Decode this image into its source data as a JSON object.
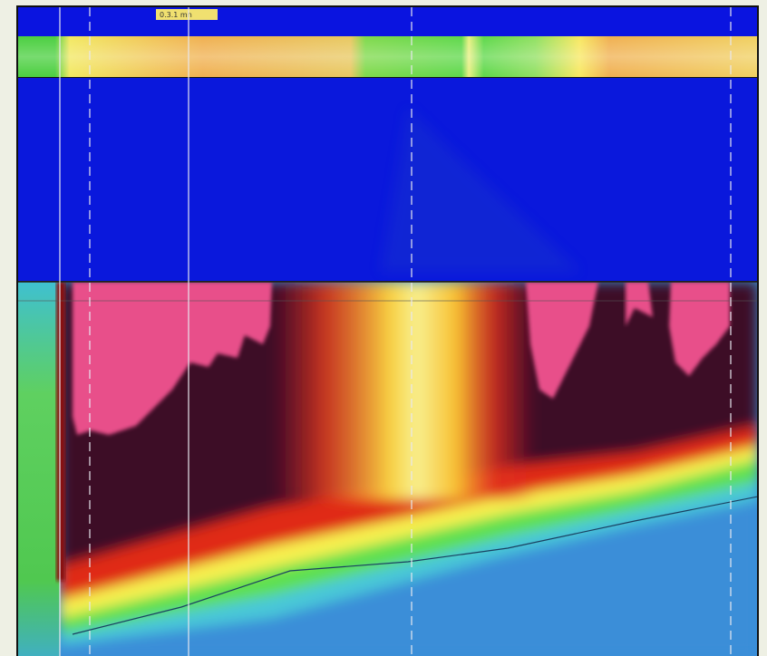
{
  "timestamp_label": "0.3.1 mn"
}
